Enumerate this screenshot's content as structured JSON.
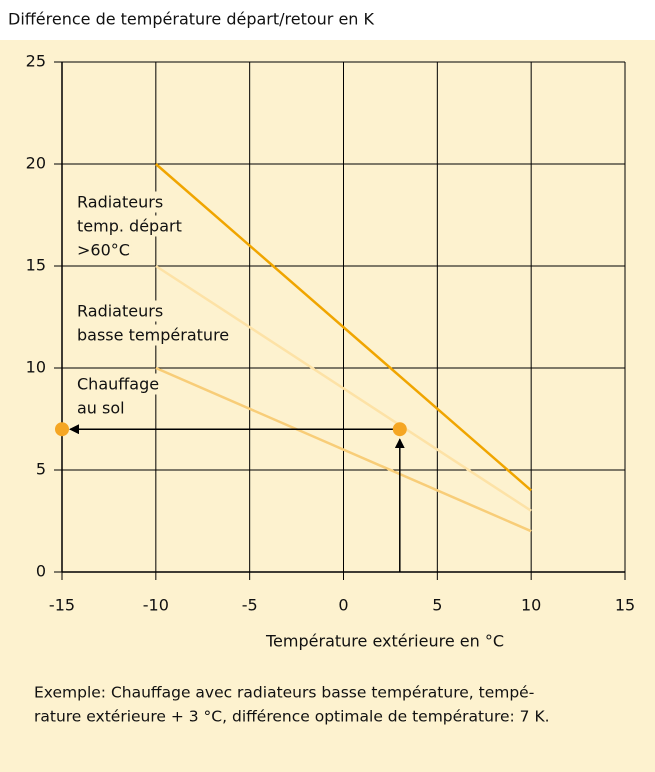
{
  "chart_data": {
    "type": "line",
    "title": "Différence de température départ/retour en K",
    "x_label": "Température extérieure en °C",
    "xlim": [
      -15,
      15
    ],
    "xticks": [
      -15,
      -10,
      -5,
      0,
      5,
      10,
      15
    ],
    "ylim": [
      0,
      25
    ],
    "yticks": [
      0,
      5,
      10,
      15,
      20,
      25
    ],
    "grid": true,
    "series": [
      {
        "name": [
          "Radiateurs",
          "temp. départ",
          ">60°C"
        ],
        "color": "#f0a500",
        "x": [
          -10,
          10
        ],
        "values": [
          20,
          4
        ]
      },
      {
        "name": [
          "Radiateurs",
          "basse température"
        ],
        "color": "#fde2a6",
        "x": [
          -10,
          10
        ],
        "values": [
          15,
          3
        ]
      },
      {
        "name": [
          "Chauffage",
          "au sol"
        ],
        "color": "#f8cd78",
        "x": [
          -10,
          10
        ],
        "values": [
          10,
          2
        ]
      }
    ],
    "points": {
      "color": "#f5a623",
      "x": [
        -15,
        3
      ],
      "values": [
        7,
        7
      ]
    },
    "caption": [
      "Exemple: Chauffage avec radiateurs basse température, tempé-",
      "rature extérieure + 3 °C, différence optimale de température: 7 K."
    ]
  }
}
